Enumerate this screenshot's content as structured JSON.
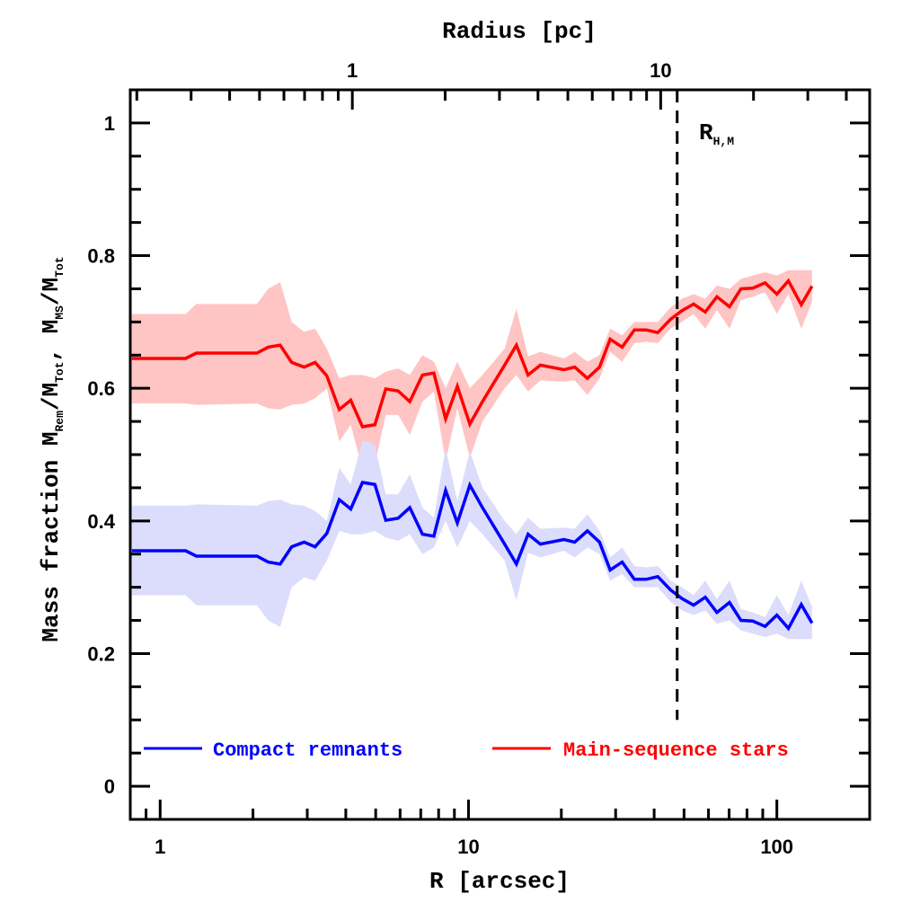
{
  "chart_data": {
    "type": "line",
    "xlabel": "R [arcsec]",
    "xlabel_top": "Radius [pc]",
    "ylabel": {
      "main": "Mass fraction",
      "m1": "M",
      "s1": "Rem",
      "slash1": "/M",
      "s2": "Tot",
      "comma": ", M",
      "s3": "MS",
      "slash2": "/M",
      "s4": "Tot"
    },
    "xscale": "log",
    "xlim": [
      0.8,
      200
    ],
    "ylim": [
      -0.05,
      1.05
    ],
    "x_ticks": [
      {
        "value": 1,
        "label": "1"
      },
      {
        "value": 10,
        "label": "10"
      },
      {
        "value": 100,
        "label": "100"
      }
    ],
    "top_ticks_pc": [
      {
        "value": 1,
        "label": "1"
      },
      {
        "value": 10,
        "label": "10"
      }
    ],
    "arcsec_per_pc": 4.2,
    "y_ticks": [
      {
        "value": 0,
        "label": "0"
      },
      {
        "value": 0.2,
        "label": "0.2"
      },
      {
        "value": 0.4,
        "label": "0.4"
      },
      {
        "value": 0.6,
        "label": "0.6"
      },
      {
        "value": 0.8,
        "label": "0.8"
      },
      {
        "value": 1,
        "label": "1"
      }
    ],
    "vline": {
      "x": 47.5,
      "label": "R",
      "label_sub": "H,M",
      "style": "dashed"
    },
    "legend": {
      "placement": "bottom",
      "entries": [
        {
          "name": "Compact remnants",
          "color": "#0000ff"
        },
        {
          "name": "Main-sequence stars",
          "color": "#ff0000"
        }
      ]
    },
    "x": [
      0.81,
      1.21,
      1.31,
      2.06,
      2.24,
      2.45,
      2.67,
      2.93,
      3.18,
      3.47,
      3.81,
      4.15,
      4.53,
      4.97,
      5.39,
      5.91,
      6.45,
      7.09,
      7.72,
      8.43,
      9.2,
      10.1,
      11.1,
      13.1,
      14.3,
      15.6,
      17.1,
      20.4,
      22.1,
      24.3,
      26.6,
      28.8,
      31.5,
      34.5,
      37.7,
      41.1,
      45.2,
      49.2,
      53.7,
      58.6,
      63.9,
      70.2,
      76.5,
      83.5,
      91.6,
      100,
      109,
      120,
      130
    ],
    "series": [
      {
        "name": "Main-sequence stars",
        "color": "#ff0000",
        "band_color": "#ffc4c4",
        "values": [
          0.645,
          0.645,
          0.653,
          0.653,
          0.662,
          0.665,
          0.639,
          0.632,
          0.639,
          0.619,
          0.568,
          0.582,
          0.542,
          0.545,
          0.599,
          0.596,
          0.58,
          0.62,
          0.623,
          0.554,
          0.603,
          0.546,
          0.58,
          0.635,
          0.665,
          0.62,
          0.635,
          0.628,
          0.632,
          0.615,
          0.632,
          0.674,
          0.662,
          0.688,
          0.688,
          0.684,
          0.704,
          0.717,
          0.727,
          0.715,
          0.738,
          0.723,
          0.75,
          0.751,
          0.759,
          0.742,
          0.762,
          0.726,
          0.754
        ],
        "upper": [
          0.712,
          0.712,
          0.727,
          0.727,
          0.75,
          0.76,
          0.7,
          0.685,
          0.69,
          0.66,
          0.615,
          0.62,
          0.62,
          0.615,
          0.625,
          0.63,
          0.62,
          0.65,
          0.64,
          0.6,
          0.64,
          0.6,
          0.62,
          0.66,
          0.72,
          0.648,
          0.655,
          0.645,
          0.655,
          0.64,
          0.65,
          0.69,
          0.68,
          0.7,
          0.7,
          0.7,
          0.722,
          0.735,
          0.742,
          0.735,
          0.755,
          0.75,
          0.765,
          0.77,
          0.775,
          0.77,
          0.778,
          0.778,
          0.778
        ],
        "lower": [
          0.577,
          0.577,
          0.575,
          0.577,
          0.57,
          0.568,
          0.575,
          0.577,
          0.585,
          0.6,
          0.52,
          0.545,
          0.478,
          0.485,
          0.56,
          0.56,
          0.53,
          0.58,
          0.595,
          0.49,
          0.57,
          0.495,
          0.55,
          0.6,
          0.62,
          0.595,
          0.612,
          0.61,
          0.612,
          0.59,
          0.615,
          0.655,
          0.64,
          0.668,
          0.67,
          0.668,
          0.69,
          0.7,
          0.712,
          0.69,
          0.718,
          0.69,
          0.733,
          0.738,
          0.745,
          0.712,
          0.742,
          0.69,
          0.73
        ]
      },
      {
        "name": "Compact remnants",
        "color": "#0000ff",
        "band_color": "#dcdcfc",
        "values": [
          0.355,
          0.355,
          0.347,
          0.347,
          0.338,
          0.335,
          0.361,
          0.368,
          0.361,
          0.381,
          0.432,
          0.418,
          0.458,
          0.455,
          0.401,
          0.404,
          0.42,
          0.38,
          0.377,
          0.446,
          0.397,
          0.454,
          0.42,
          0.365,
          0.335,
          0.38,
          0.365,
          0.372,
          0.368,
          0.385,
          0.368,
          0.326,
          0.338,
          0.312,
          0.312,
          0.316,
          0.296,
          0.283,
          0.273,
          0.285,
          0.262,
          0.277,
          0.25,
          0.249,
          0.241,
          0.258,
          0.238,
          0.274,
          0.246
        ],
        "upper": [
          0.423,
          0.423,
          0.425,
          0.423,
          0.43,
          0.432,
          0.425,
          0.423,
          0.415,
          0.4,
          0.48,
          0.455,
          0.522,
          0.515,
          0.44,
          0.44,
          0.47,
          0.42,
          0.405,
          0.51,
          0.43,
          0.505,
          0.45,
          0.4,
          0.38,
          0.405,
          0.388,
          0.39,
          0.388,
          0.41,
          0.385,
          0.345,
          0.36,
          0.332,
          0.33,
          0.332,
          0.31,
          0.3,
          0.288,
          0.31,
          0.282,
          0.31,
          0.267,
          0.262,
          0.255,
          0.288,
          0.258,
          0.31,
          0.27
        ],
        "lower": [
          0.288,
          0.288,
          0.273,
          0.273,
          0.25,
          0.24,
          0.3,
          0.315,
          0.31,
          0.34,
          0.385,
          0.38,
          0.38,
          0.385,
          0.375,
          0.37,
          0.38,
          0.35,
          0.36,
          0.4,
          0.36,
          0.4,
          0.38,
          0.34,
          0.28,
          0.352,
          0.345,
          0.355,
          0.345,
          0.36,
          0.35,
          0.31,
          0.32,
          0.3,
          0.3,
          0.3,
          0.278,
          0.265,
          0.258,
          0.265,
          0.245,
          0.25,
          0.235,
          0.23,
          0.225,
          0.23,
          0.222,
          0.222,
          0.222
        ]
      }
    ]
  }
}
